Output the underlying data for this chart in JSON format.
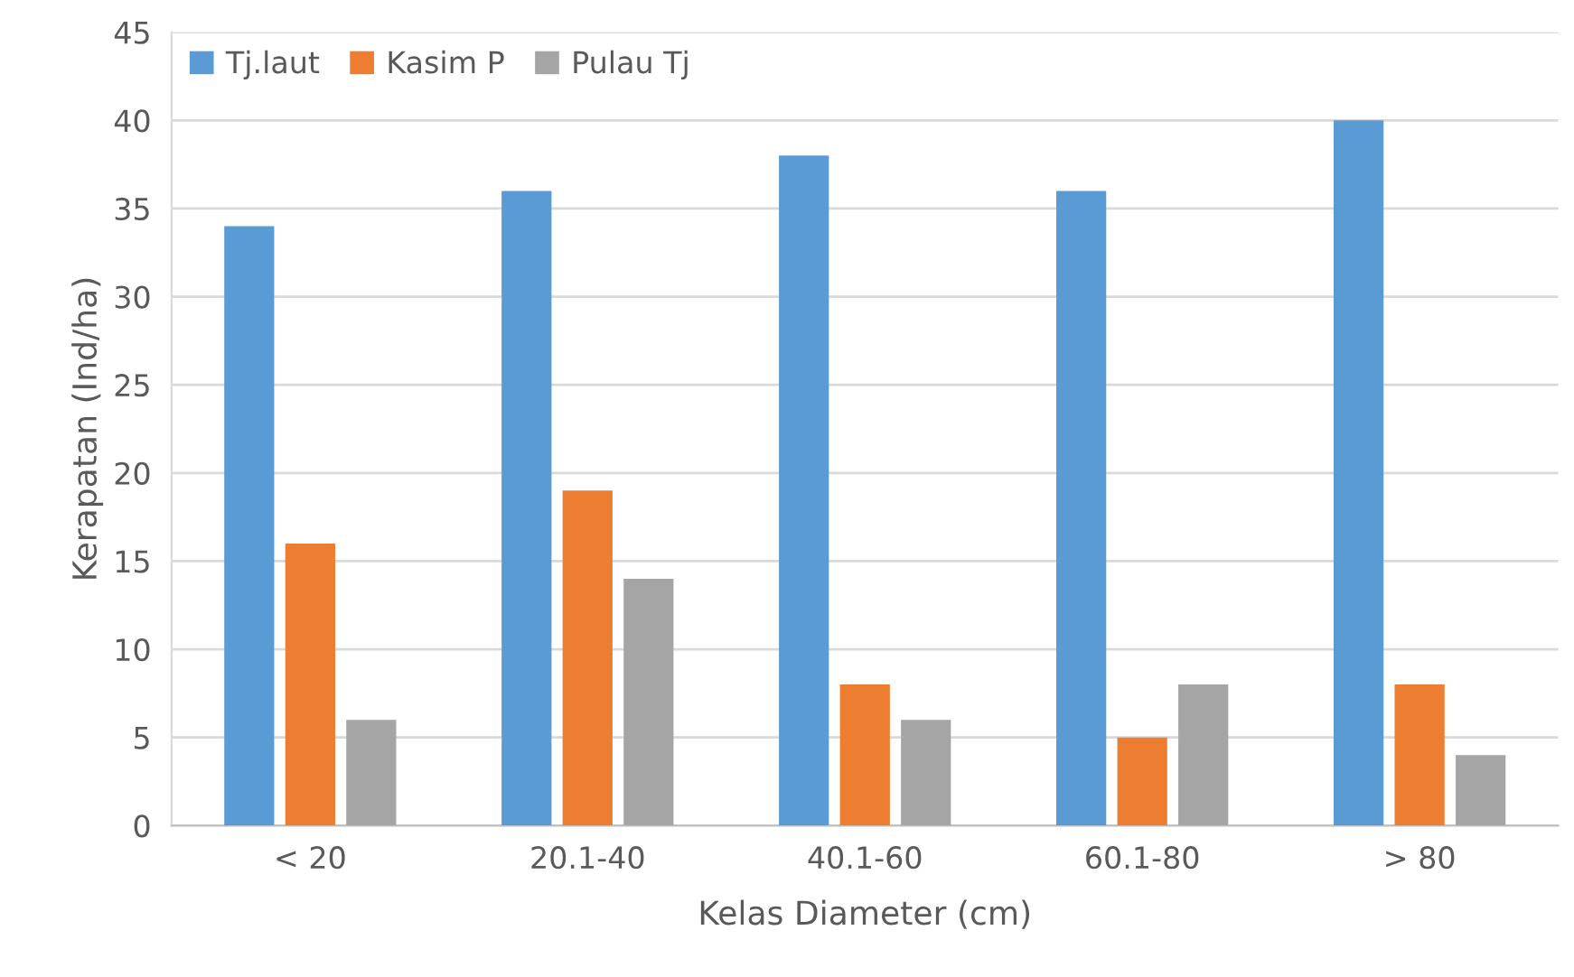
{
  "chart_data": {
    "type": "bar",
    "xlabel": "Kelas Diameter (cm)",
    "ylabel": "Kerapatan (Ind/ha)",
    "categories": [
      "< 20",
      "20.1-40",
      "40.1-60",
      "60.1-80",
      "> 80"
    ],
    "series": [
      {
        "name": "Tj.laut",
        "color": "#5b9bd5",
        "values": [
          34,
          36,
          38,
          36,
          40
        ]
      },
      {
        "name": "Kasim P",
        "color": "#ed7d31",
        "values": [
          16,
          19,
          8,
          5,
          8
        ]
      },
      {
        "name": "Pulau Tj",
        "color": "#a5a5a5",
        "values": [
          6,
          14,
          6,
          8,
          4
        ]
      }
    ],
    "ylim": [
      0,
      45
    ],
    "yticks": [
      0,
      5,
      10,
      15,
      20,
      25,
      30,
      35,
      40,
      45
    ],
    "grid": "y",
    "legend": "top left"
  }
}
